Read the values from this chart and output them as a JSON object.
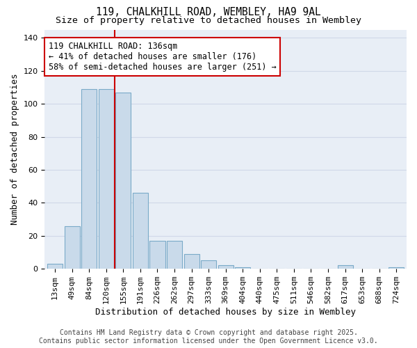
{
  "title1": "119, CHALKHILL ROAD, WEMBLEY, HA9 9AL",
  "title2": "Size of property relative to detached houses in Wembley",
  "xlabel": "Distribution of detached houses by size in Wembley",
  "ylabel": "Number of detached properties",
  "bin_labels": [
    "13sqm",
    "49sqm",
    "84sqm",
    "120sqm",
    "155sqm",
    "191sqm",
    "226sqm",
    "262sqm",
    "297sqm",
    "333sqm",
    "369sqm",
    "404sqm",
    "440sqm",
    "475sqm",
    "511sqm",
    "546sqm",
    "582sqm",
    "617sqm",
    "653sqm",
    "688sqm",
    "724sqm"
  ],
  "bar_values": [
    3,
    26,
    109,
    109,
    107,
    46,
    17,
    17,
    9,
    5,
    2,
    1,
    0,
    0,
    0,
    0,
    0,
    2,
    0,
    0,
    1
  ],
  "bar_color": "#c9daea",
  "bar_edge_color": "#7aaac8",
  "grid_color": "#d0d8e8",
  "bg_color": "#e8eef6",
  "vline_color": "#cc0000",
  "annotation_text": "119 CHALKHILL ROAD: 136sqm\n← 41% of detached houses are smaller (176)\n58% of semi-detached houses are larger (251) →",
  "annotation_box_color": "white",
  "annotation_border_color": "#cc0000",
  "ylim": [
    0,
    145
  ],
  "yticks": [
    0,
    20,
    40,
    60,
    80,
    100,
    120,
    140
  ],
  "footer1": "Contains HM Land Registry data © Crown copyright and database right 2025.",
  "footer2": "Contains public sector information licensed under the Open Government Licence v3.0.",
  "title_fontsize": 10.5,
  "subtitle_fontsize": 9.5,
  "axis_label_fontsize": 9,
  "tick_fontsize": 8,
  "annotation_fontsize": 8.5,
  "footer_fontsize": 7
}
